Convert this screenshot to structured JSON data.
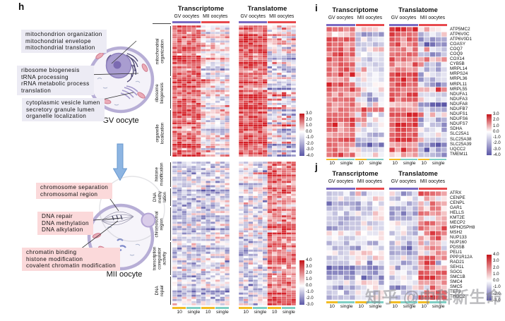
{
  "headers": {
    "transcriptome": "Transcriptome",
    "translatome": "Translatome",
    "gv": "GV oocytes",
    "mii": "MII oocytes"
  },
  "sample_labels": [
    "10",
    "single",
    "10",
    "single"
  ],
  "watermark": "知乎 @中科新生命",
  "panel_h": {
    "label": "h",
    "gv_caption": "GV oocyte",
    "mii_caption": "MII oocyte",
    "gv_annotations": [
      {
        "lines": [
          "mitochondrion organization",
          "mitochondrial envelope",
          "mitochondrial translation"
        ]
      },
      {
        "lines": [
          "ribosome biogenesis",
          "tRNA processing",
          "rRNA metabolic process",
          "translation"
        ]
      },
      {
        "lines": [
          "cytoplasmic vesicle lumen",
          "secretory granule lumen",
          "organelle localization"
        ]
      }
    ],
    "mii_annotations": [
      {
        "lines": [
          "chromosome separation",
          "chromosomal region"
        ]
      },
      {
        "lines": [
          "DNA repair",
          "DNA methylation",
          "DNA alkylation"
        ]
      },
      {
        "lines": [
          "chromatin binding",
          "histone modification",
          "covalent chromatin modification"
        ]
      }
    ]
  },
  "panel_i": {
    "label": "i"
  },
  "panel_j": {
    "label": "j"
  },
  "colors": {
    "gv_condition_bar": "#7a68c1",
    "mii_condition_bar": "#e7494d",
    "pool10_bar": "#f2bc25",
    "single_bar": "#7fcfc4",
    "heat_red": "#d52027",
    "heat_blue": "#5b57a7"
  },
  "chart_data": [
    {
      "id": "h_top",
      "type": "heatmap",
      "matrices": [
        "Transcriptome",
        "Translatome"
      ],
      "conditions": [
        "GV oocytes",
        "MII oocytes"
      ],
      "col_samples": [
        "10",
        "single",
        "10",
        "single"
      ],
      "col_sample_sizes": [
        3,
        3,
        3,
        3
      ],
      "row_groups": [
        {
          "label": "mitochondrial organization",
          "label_lines": [
            "mitochondrial",
            "organization"
          ],
          "n_rows": 24
        },
        {
          "label": "ribosome biogenesis",
          "label_lines": [
            "ribosome",
            "biogenesis"
          ],
          "n_rows": 15
        },
        {
          "label": "organelle localization",
          "label_lines": [
            "organelle",
            "localization"
          ],
          "n_rows": 22
        }
      ],
      "scale": {
        "tick_labels": [
          "3.0",
          "2.0",
          "1.0",
          "0.0",
          "-1.0",
          "-2.0",
          "-3.0",
          "-4.0"
        ],
        "max": 3,
        "min": -4
      },
      "patterns": [
        {
          "means": [
            2.1,
            2.0,
            0.2,
            0.1
          ],
          "sds": [
            0.6,
            0.6,
            0.7,
            0.7
          ],
          "row_sd": 0.5,
          "half_sd": 0.5
        },
        {
          "means": [
            2.2,
            2.1,
            -0.5,
            -0.7
          ],
          "sds": [
            0.6,
            0.6,
            0.9,
            0.9
          ],
          "row_sd": 0.5,
          "half_sd": 1.1
        }
      ],
      "summary": "GV-enriched GO-term genes: high (red) in GV oocytes, near zero/blue in MII, strongest loss in MII translatome."
    },
    {
      "id": "h_bottom",
      "type": "heatmap",
      "matrices": [
        "Transcriptome",
        "Translatome"
      ],
      "conditions": [
        "GV oocytes",
        "MII oocytes"
      ],
      "col_samples": [
        "10",
        "single",
        "10",
        "single"
      ],
      "col_sample_sizes": [
        3,
        3,
        3,
        3
      ],
      "row_groups": [
        {
          "label": "histone modification",
          "label_lines": [
            "histone",
            "modification"
          ],
          "n_rows": 12
        },
        {
          "label": "DNA methylation",
          "label_lines": [
            "DNA",
            "methy",
            "lation"
          ],
          "n_rows": 9
        },
        {
          "label": "chromosomal region",
          "label_lines": [
            "chromosomal",
            "region"
          ],
          "n_rows": 16
        },
        {
          "label": "transcription coregulator activity",
          "label_lines": [
            "transcription",
            "coregulator",
            "activity"
          ],
          "n_rows": 16
        },
        {
          "label": "DNA repair",
          "label_lines": [
            "DNA",
            "repair"
          ],
          "n_rows": 14
        }
      ],
      "scale": {
        "tick_labels": [
          "4.0",
          "3.0",
          "2.0",
          "1.0",
          "0.0",
          "-1.0",
          "-2.0",
          "-3.0"
        ],
        "max": 4,
        "min": -3
      },
      "patterns": [
        {
          "means": [
            -0.7,
            -0.6,
            -0.4,
            -0.3
          ],
          "sds": [
            0.7,
            0.7,
            0.8,
            0.8
          ],
          "row_sd": 0.4,
          "half_sd": 0.4
        },
        {
          "means": [
            -0.5,
            -0.6,
            2.2,
            2.1
          ],
          "sds": [
            0.9,
            0.9,
            0.9,
            0.9
          ],
          "row_sd": 0.4,
          "half_sd": 0.7
        }
      ],
      "summary": "MII-enriched GO-term genes: pale blue in transcriptome, strongly red in MII translatome."
    },
    {
      "id": "i",
      "type": "heatmap",
      "matrices": [
        "Transcriptome",
        "Translatome"
      ],
      "conditions": [
        "GV oocytes",
        "MII oocytes"
      ],
      "col_samples": [
        "10",
        "single",
        "10",
        "single"
      ],
      "col_sample_sizes": [
        2,
        3,
        2,
        3
      ],
      "rows": [
        "ATP5MC2",
        "ATP6V0C",
        "ATP6V0D1",
        "COASY",
        "COQ7",
        "COQ9",
        "COX14",
        "CYB5B",
        "MRPL14",
        "MRPS24",
        "MRPL36",
        "MRPL11",
        "MRPL55",
        "NDUFA1",
        "NDUFA3",
        "NDUFA8",
        "NDUFB7",
        "NDUFS1",
        "NDUFS6",
        "NDUFS7",
        "SDHA",
        "SLC25A1",
        "SLC25A38",
        "SLC25A39",
        "UQCC2",
        "TMEM11"
      ],
      "scale": {
        "tick_labels": [
          "3.0",
          "2.0",
          "1.0",
          "0.0",
          "-1.0",
          "-2.0",
          "-3.0",
          "-4.0"
        ],
        "max": 3,
        "min": -4
      },
      "patterns": [
        {
          "means": [
            1.7,
            1.6,
            -0.4,
            -0.6
          ],
          "sds": [
            0.5,
            0.5,
            0.7,
            0.7
          ],
          "row_sd": 0.4,
          "half_sd": 0.5
        },
        {
          "means": [
            1.9,
            1.8,
            -0.8,
            -1.0
          ],
          "sds": [
            0.5,
            0.5,
            0.9,
            0.9
          ],
          "row_sd": 0.4,
          "half_sd": 0.8
        }
      ],
      "summary": "Mitochondrial/OXPHOS genes: red in GV oocytes, white-to-blue in MII oocytes."
    },
    {
      "id": "j",
      "type": "heatmap",
      "matrices": [
        "Transcriptome",
        "Translatome"
      ],
      "conditions": [
        "GV oocytes",
        "MII oocytes"
      ],
      "col_samples": [
        "10",
        "single",
        "10",
        "single"
      ],
      "col_sample_sizes": [
        2,
        3,
        2,
        3
      ],
      "rows": [
        "ATRX",
        "CENPE",
        "CENPL",
        "GAR1",
        "HELLS",
        "KMT2E",
        "MECP2",
        "MPHOSPH8",
        "MSH2",
        "NUP133",
        "NUP160",
        "PDS5B",
        "PELI1",
        "PPP1R12A",
        "RAD21",
        "SEH1L",
        "SGO1",
        "SMC1B",
        "SMC4",
        "SMC5",
        "TET3",
        "THOC2"
      ],
      "scale": {
        "tick_labels": [
          "4.0",
          "3.0",
          "2.0",
          "1.0",
          "0.0",
          "-1.0",
          "-2.0",
          "-3.0"
        ],
        "max": 4,
        "min": -3
      },
      "patterns": [
        {
          "means": [
            -0.9,
            -0.8,
            -0.5,
            -0.4
          ],
          "sds": [
            0.5,
            0.5,
            0.7,
            0.7
          ],
          "row_sd": 0.4,
          "half_sd": 0.4
        },
        {
          "means": [
            -0.8,
            -0.7,
            1.7,
            1.6
          ],
          "sds": [
            0.7,
            0.7,
            0.9,
            0.9
          ],
          "row_sd": 0.4,
          "half_sd": 0.6
        }
      ],
      "summary": "Chromosome/chromatin genes: pale blue in transcriptome, strongly red in MII translatome."
    }
  ]
}
